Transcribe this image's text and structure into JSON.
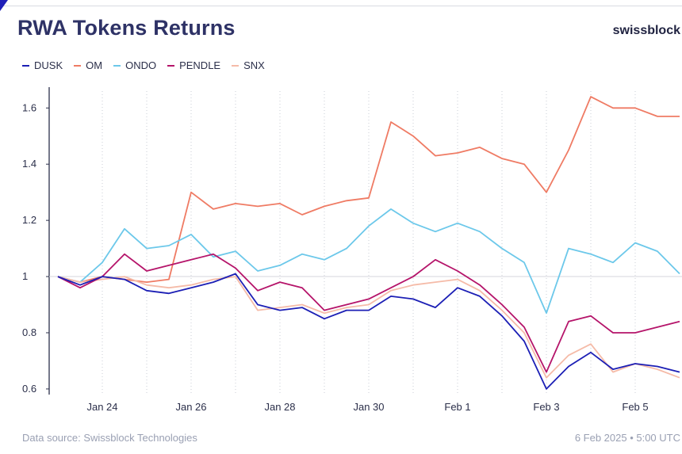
{
  "header": {
    "title": "RWA Tokens Returns",
    "brand": "swissblock"
  },
  "footer": {
    "source": "Data source: Swissblock Technologies",
    "timestamp": "6 Feb 2025 • 5:00 UTC"
  },
  "chart_data": {
    "type": "line",
    "title": "RWA Tokens Returns",
    "xlabel": "",
    "ylabel": "",
    "x_axis_type": "date",
    "x_range": [
      "2025-01-23",
      "2025-02-06"
    ],
    "x_ticks": [
      "Jan 24",
      "Jan 26",
      "Jan 28",
      "Jan 30",
      "Feb 1",
      "Feb 3",
      "Feb 5"
    ],
    "ylim": [
      0.58,
      1.66
    ],
    "y_ticks": [
      0.6,
      0.8,
      1,
      1.2,
      1.4,
      1.6
    ],
    "y_tick_labels": [
      "0.6",
      "0.8",
      "1",
      "1.2",
      "1.4",
      "1.6"
    ],
    "reference_line": 1,
    "grid": "vertical dotted at day ticks",
    "legend_position": "top-left",
    "x": [
      "2025-01-23",
      "2025-01-23 12:00",
      "2025-01-24",
      "2025-01-24 12:00",
      "2025-01-25",
      "2025-01-25 12:00",
      "2025-01-26",
      "2025-01-26 12:00",
      "2025-01-27",
      "2025-01-27 12:00",
      "2025-01-28",
      "2025-01-28 12:00",
      "2025-01-29",
      "2025-01-29 12:00",
      "2025-01-30",
      "2025-01-30 12:00",
      "2025-01-31",
      "2025-01-31 12:00",
      "2025-02-01",
      "2025-02-01 12:00",
      "2025-02-02",
      "2025-02-02 12:00",
      "2025-02-03",
      "2025-02-03 12:00",
      "2025-02-04",
      "2025-02-04 12:00",
      "2025-02-05",
      "2025-02-05 12:00",
      "2025-02-06"
    ],
    "series": [
      {
        "name": "DUSK",
        "color": "#1c1fb5",
        "values": [
          1.0,
          0.97,
          1.0,
          0.99,
          0.95,
          0.94,
          0.96,
          0.98,
          1.01,
          0.9,
          0.88,
          0.89,
          0.85,
          0.88,
          0.88,
          0.93,
          0.92,
          0.89,
          0.96,
          0.93,
          0.86,
          0.77,
          0.6,
          0.68,
          0.73,
          0.67,
          0.69,
          0.68,
          0.66
        ]
      },
      {
        "name": "OM",
        "color": "#ef7b64",
        "values": [
          1.0,
          0.98,
          1.0,
          0.99,
          0.98,
          0.99,
          1.3,
          1.24,
          1.26,
          1.25,
          1.26,
          1.22,
          1.25,
          1.27,
          1.28,
          1.55,
          1.5,
          1.43,
          1.44,
          1.46,
          1.42,
          1.4,
          1.3,
          1.45,
          1.64,
          1.6,
          1.6,
          1.57,
          1.57
        ]
      },
      {
        "name": "ONDO",
        "color": "#6cc8ea",
        "values": [
          1.0,
          0.98,
          1.05,
          1.17,
          1.1,
          1.11,
          1.15,
          1.07,
          1.09,
          1.02,
          1.04,
          1.08,
          1.06,
          1.1,
          1.18,
          1.24,
          1.19,
          1.16,
          1.19,
          1.16,
          1.1,
          1.05,
          0.87,
          1.1,
          1.08,
          1.05,
          1.12,
          1.09,
          1.01
        ]
      },
      {
        "name": "PENDLE",
        "color": "#b5146a",
        "values": [
          1.0,
          0.96,
          1.0,
          1.08,
          1.02,
          1.04,
          1.06,
          1.08,
          1.03,
          0.95,
          0.98,
          0.96,
          0.88,
          0.9,
          0.92,
          0.96,
          1.0,
          1.06,
          1.02,
          0.97,
          0.9,
          0.82,
          0.66,
          0.84,
          0.86,
          0.8,
          0.8,
          0.82,
          0.84
        ]
      },
      {
        "name": "SNX",
        "color": "#f5bba8",
        "values": [
          1.0,
          0.98,
          0.99,
          1.0,
          0.97,
          0.96,
          0.97,
          0.99,
          1.0,
          0.88,
          0.89,
          0.9,
          0.87,
          0.89,
          0.9,
          0.95,
          0.97,
          0.98,
          0.99,
          0.95,
          0.88,
          0.8,
          0.64,
          0.72,
          0.76,
          0.66,
          0.69,
          0.67,
          0.64
        ]
      }
    ]
  }
}
